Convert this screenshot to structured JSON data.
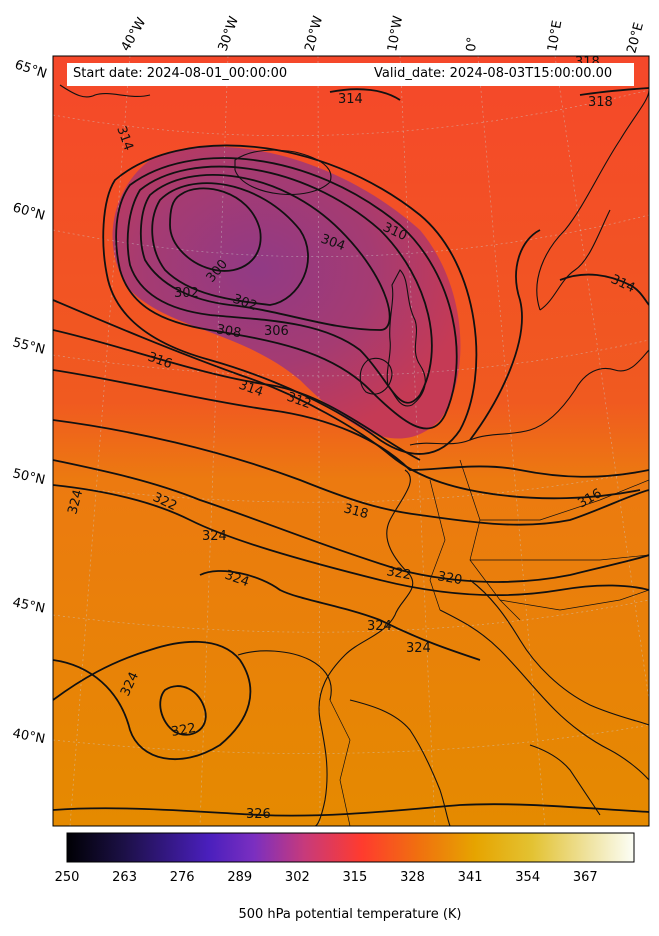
{
  "header": {
    "start_date": "Start date: 2024-08-01_00:00:00",
    "valid_date": "Valid_date: 2024-08-03T15:00:00.00"
  },
  "map": {
    "variable": "500 hPa potential temperature (K)",
    "longitude_labels": [
      "40°W",
      "30°W",
      "20°W",
      "10°W",
      "0°",
      "10°E",
      "20°E"
    ],
    "latitude_labels": [
      "65°N",
      "60°N",
      "55°N",
      "50°N",
      "45°N",
      "40°N"
    ],
    "colormap": [
      "#000004",
      "#1c1046",
      "#4a10a8",
      "#9b2fa0",
      "#d8335f",
      "#ff4a2a",
      "#f07a10",
      "#e8a400",
      "#e8c520",
      "#f3e58a",
      "#fcfef0"
    ],
    "background_colors": {
      "low_trough": "#953a7a",
      "mid": "#f5441f",
      "warm": "#ec7a10",
      "south": "#e88a00"
    },
    "contour_labels": [
      "314",
      "314",
      "318",
      "318",
      "310",
      "304",
      "300",
      "302",
      "302",
      "308",
      "306",
      "314",
      "316",
      "314",
      "312",
      "318",
      "316",
      "324",
      "322",
      "324",
      "324",
      "322",
      "320",
      "324",
      "324",
      "324",
      "322",
      "326"
    ]
  },
  "colorbar": {
    "min": 250,
    "max": 378,
    "ticks": [
      "250",
      "263",
      "276",
      "289",
      "302",
      "315",
      "328",
      "341",
      "354",
      "367"
    ],
    "label": "500 hPa potential temperature (K)"
  }
}
